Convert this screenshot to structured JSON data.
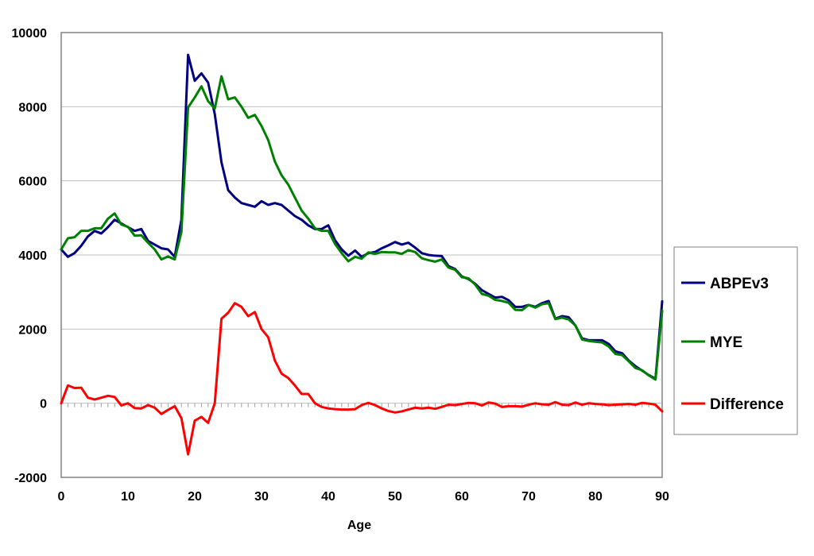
{
  "chart_data": {
    "type": "line",
    "xlabel": "Age",
    "ylabel": "",
    "xlim": [
      0,
      90
    ],
    "ylim": [
      -2000,
      10000
    ],
    "xticks": [
      0,
      10,
      20,
      30,
      40,
      50,
      60,
      70,
      80,
      90
    ],
    "yticks": [
      -2000,
      0,
      2000,
      4000,
      6000,
      8000,
      10000
    ],
    "grid": "horizontal",
    "legend_position": "right",
    "x": [
      0,
      1,
      2,
      3,
      4,
      5,
      6,
      7,
      8,
      9,
      10,
      11,
      12,
      13,
      14,
      15,
      16,
      17,
      18,
      19,
      20,
      21,
      22,
      23,
      24,
      25,
      26,
      27,
      28,
      29,
      30,
      31,
      32,
      33,
      34,
      35,
      36,
      37,
      38,
      39,
      40,
      41,
      42,
      43,
      44,
      45,
      46,
      47,
      48,
      49,
      50,
      51,
      52,
      53,
      54,
      55,
      56,
      57,
      58,
      59,
      60,
      61,
      62,
      63,
      64,
      65,
      66,
      67,
      68,
      69,
      70,
      71,
      72,
      73,
      74,
      75,
      76,
      77,
      78,
      79,
      80,
      81,
      82,
      83,
      84,
      85,
      86,
      87,
      88,
      89,
      90
    ],
    "series": [
      {
        "name": "ABPEv3",
        "color": "#000080",
        "values": [
          4150,
          3950,
          4050,
          4250,
          4500,
          4650,
          4580,
          4750,
          4950,
          4850,
          4750,
          4650,
          4700,
          4380,
          4280,
          4180,
          4150,
          3950,
          4950,
          9400,
          8700,
          8900,
          8650,
          7800,
          6500,
          5750,
          5550,
          5400,
          5350,
          5300,
          5450,
          5350,
          5400,
          5350,
          5200,
          5050,
          4950,
          4800,
          4700,
          4700,
          4800,
          4400,
          4150,
          3980,
          4120,
          3950,
          4050,
          4080,
          4180,
          4260,
          4350,
          4280,
          4330,
          4200,
          4050,
          4000,
          3980,
          3970,
          3700,
          3620,
          3420,
          3350,
          3220,
          3050,
          2950,
          2850,
          2870,
          2780,
          2600,
          2600,
          2650,
          2600,
          2700,
          2760,
          2280,
          2350,
          2320,
          2100,
          1750,
          1700,
          1700,
          1700,
          1600,
          1400,
          1350,
          1150,
          1000,
          880,
          760,
          660,
          2750
        ]
      },
      {
        "name": "MYE",
        "color": "#008000",
        "values": [
          4150,
          4450,
          4480,
          4650,
          4650,
          4720,
          4720,
          4980,
          5120,
          4820,
          4760,
          4520,
          4530,
          4330,
          4150,
          3880,
          3960,
          3880,
          4620,
          7980,
          8250,
          8550,
          8150,
          7950,
          8820,
          8200,
          8250,
          8000,
          7700,
          7780,
          7480,
          7100,
          6520,
          6150,
          5900,
          5550,
          5200,
          4980,
          4720,
          4650,
          4650,
          4300,
          4050,
          3830,
          3950,
          3900,
          4070,
          4030,
          4080,
          4070,
          4070,
          4030,
          4130,
          4080,
          3910,
          3860,
          3820,
          3880,
          3660,
          3600,
          3400,
          3370,
          3200,
          2950,
          2900,
          2790,
          2760,
          2710,
          2520,
          2510,
          2650,
          2580,
          2670,
          2700,
          2270,
          2310,
          2260,
          2100,
          1720,
          1680,
          1660,
          1640,
          1530,
          1330,
          1300,
          1130,
          950,
          890,
          750,
          640,
          2500
        ]
      },
      {
        "name": "Difference",
        "color": "#FF0000",
        "values": [
          0,
          480,
          410,
          420,
          150,
          100,
          150,
          200,
          170,
          -60,
          0,
          -130,
          -140,
          -50,
          -120,
          -290,
          -180,
          -80,
          -400,
          -1380,
          -470,
          -370,
          -530,
          0,
          2280,
          2440,
          2700,
          2600,
          2350,
          2460,
          2000,
          1780,
          1150,
          800,
          680,
          480,
          250,
          250,
          0,
          -100,
          -140,
          -160,
          -170,
          -170,
          -160,
          -50,
          10,
          -50,
          -140,
          -210,
          -250,
          -220,
          -170,
          -120,
          -140,
          -120,
          -150,
          -100,
          -40,
          -50,
          -20,
          10,
          0,
          -60,
          20,
          -10,
          -100,
          -80,
          -80,
          -90,
          -40,
          0,
          -30,
          -40,
          30,
          -40,
          -50,
          20,
          -40,
          0,
          -20,
          -30,
          -50,
          -40,
          -30,
          -20,
          -40,
          10,
          -10,
          -40,
          -220
        ]
      }
    ]
  }
}
